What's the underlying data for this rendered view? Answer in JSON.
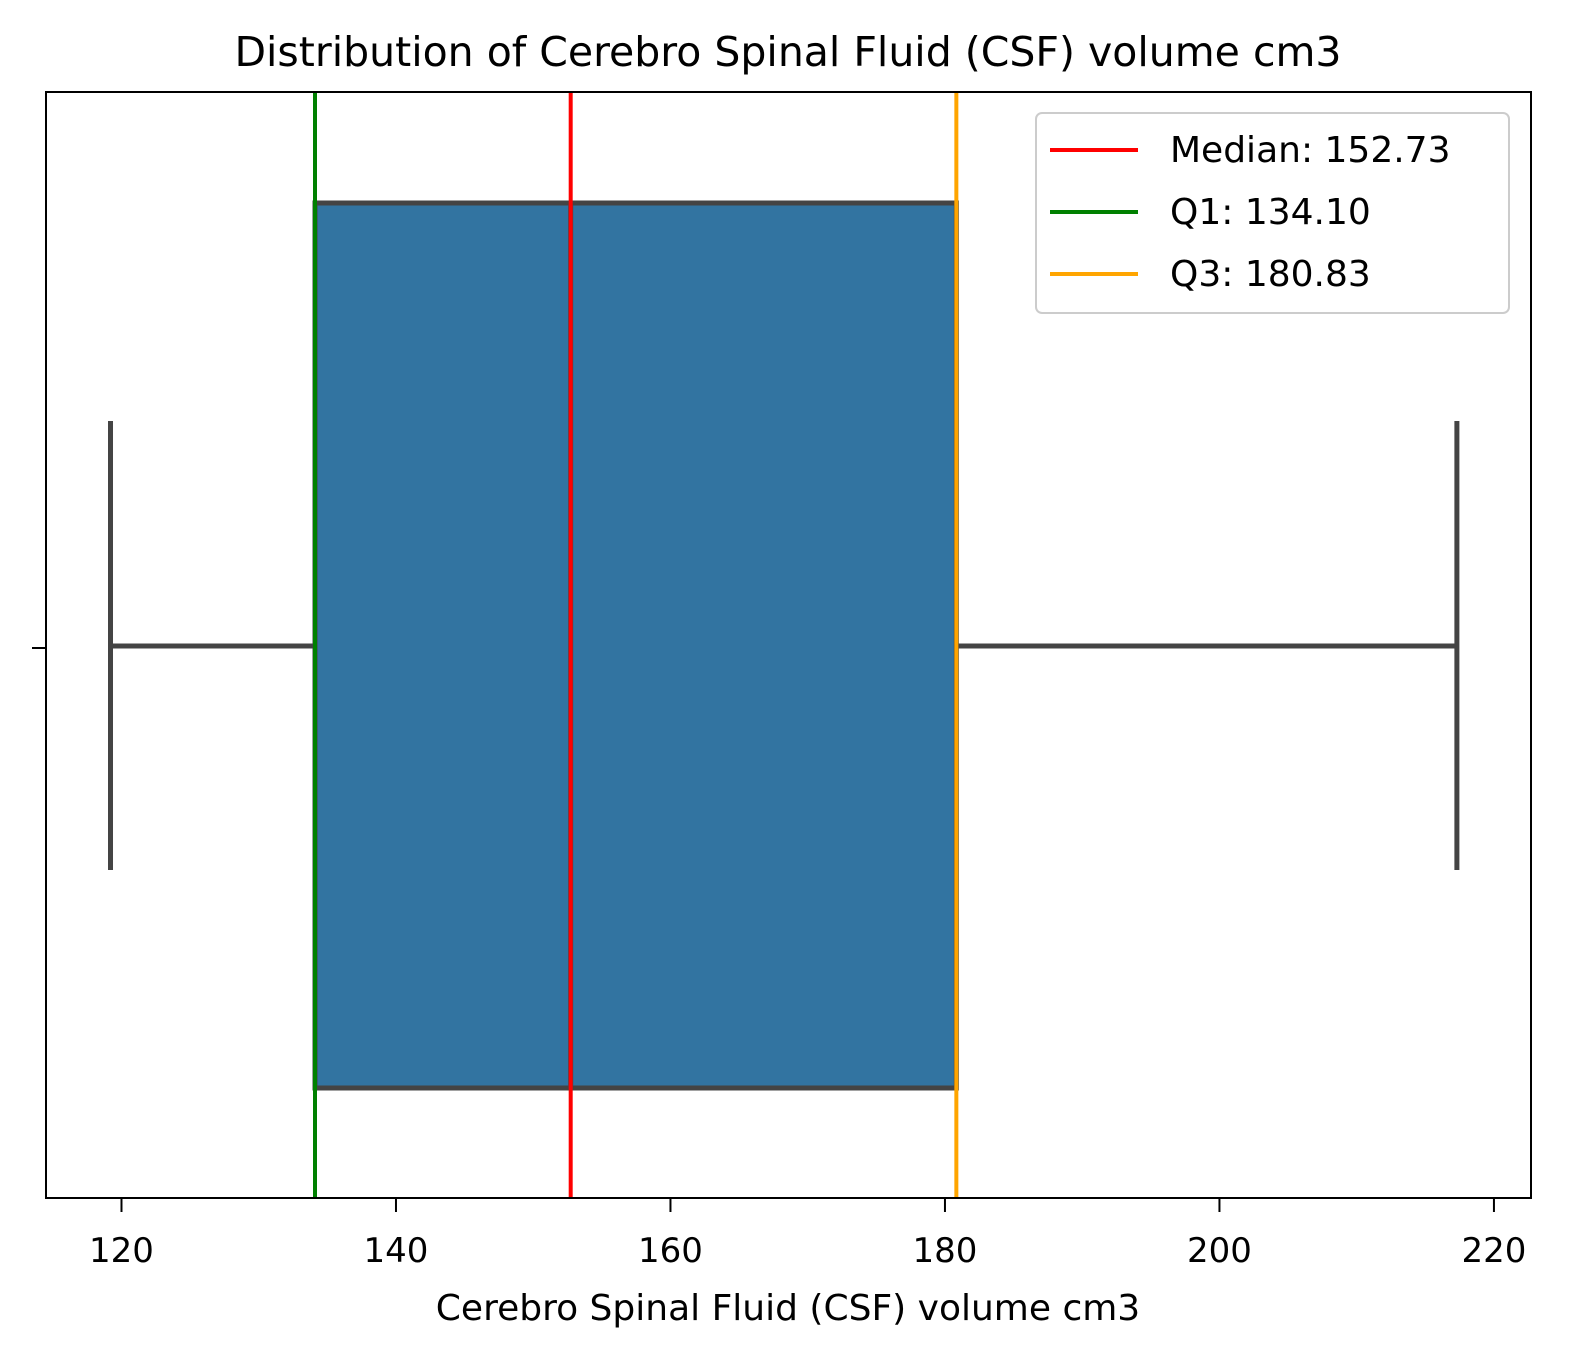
{
  "chart_data": {
    "type": "box",
    "title": "Distribution of Cerebro Spinal Fluid (CSF) volume cm3",
    "xlabel": "Cerebro Spinal Fluid (CSF) volume cm3",
    "ylabel": "",
    "xlim": [
      114.5,
      222.7
    ],
    "x_ticks": [
      120,
      140,
      160,
      180,
      200,
      220
    ],
    "box": {
      "whisker_low": 119.2,
      "q1": 134.1,
      "median": 152.73,
      "q3": 180.83,
      "whisker_high": 217.3,
      "fill_color": "#3274a1",
      "edge_color": "#444444"
    },
    "reference_lines": [
      {
        "label": "Median: 152.73",
        "value": 152.73,
        "color": "#ff0000"
      },
      {
        "label": "Q1: 134.10",
        "value": 134.1,
        "color": "#008000"
      },
      {
        "label": "Q3: 180.83",
        "value": 180.83,
        "color": "#ffa500"
      }
    ],
    "legend_position": "top-right",
    "grid": false
  }
}
